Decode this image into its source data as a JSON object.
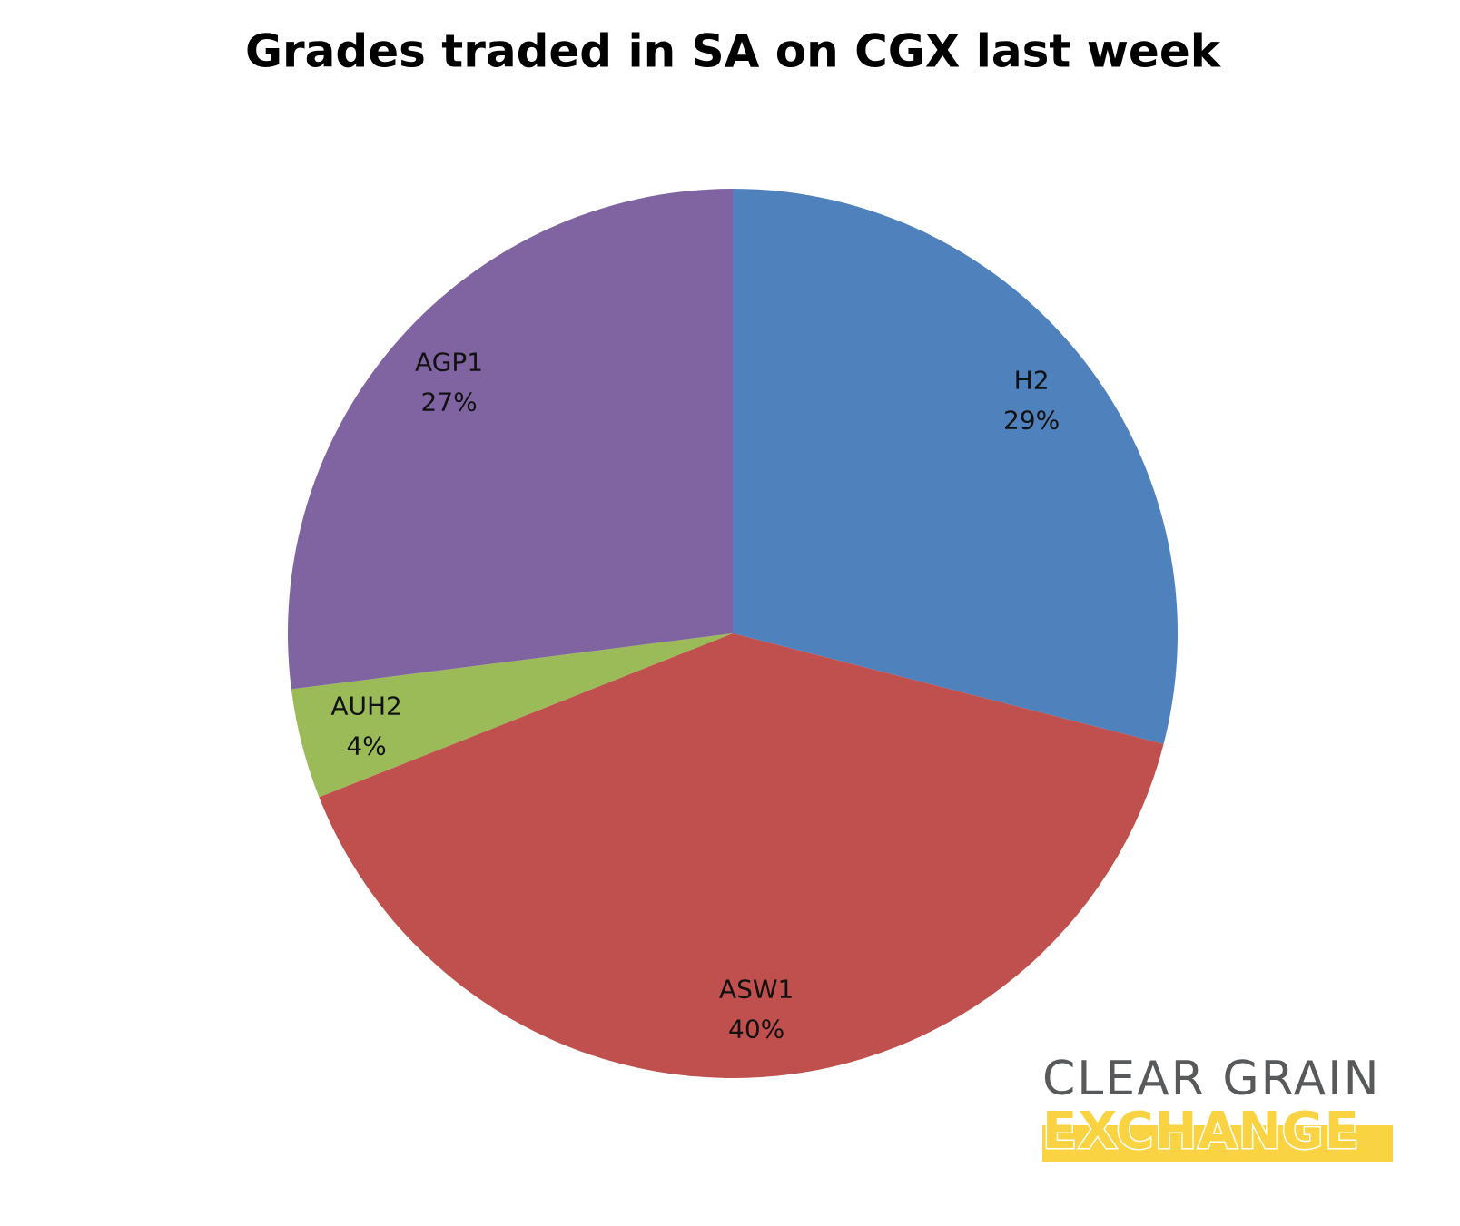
{
  "chart_data": {
    "type": "pie",
    "title": "Grades traded in SA on CGX last week",
    "categories": [
      "H2",
      "ASW1",
      "AUH2",
      "AGP1"
    ],
    "values": [
      29,
      40,
      4,
      27
    ],
    "value_labels": [
      "29%",
      "40%",
      "4%",
      "27%"
    ],
    "colors": [
      "#4f81bd",
      "#c0504d",
      "#9bbb59",
      "#8064a2"
    ]
  },
  "logo": {
    "line1": "CLEAR GRAIN",
    "line2": "EXCHANGE"
  }
}
